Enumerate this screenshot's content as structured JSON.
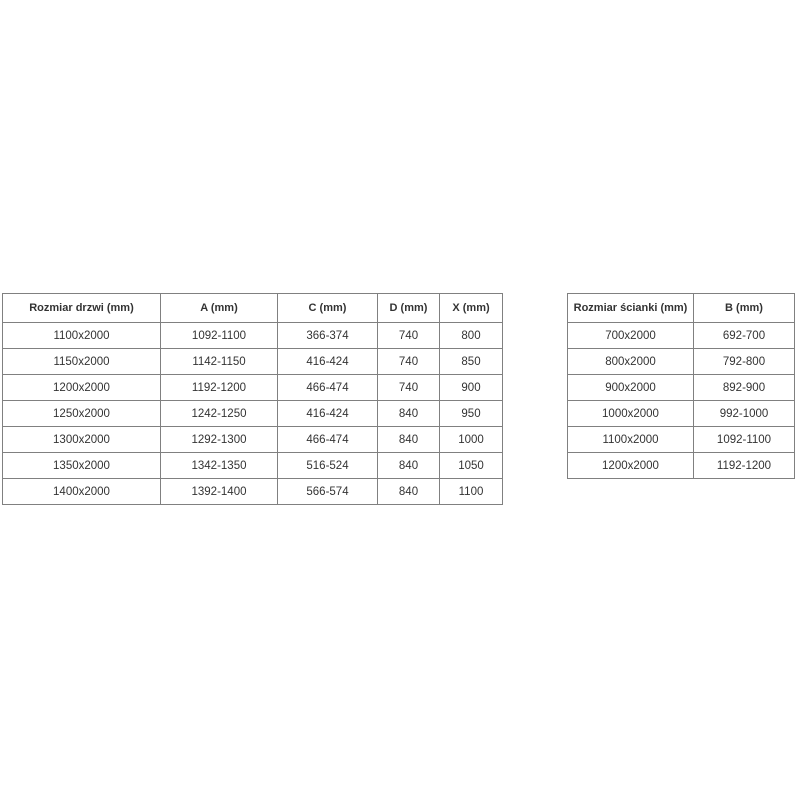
{
  "theme": {
    "background_color": "#ffffff",
    "border_color": "#808080",
    "text_color": "#333333"
  },
  "tables": {
    "doors": {
      "headers": [
        "Rozmiar drzwi (mm)",
        "A (mm)",
        "C (mm)",
        "D (mm)",
        "X (mm)"
      ],
      "rows": [
        [
          "1100x2000",
          "1092-1100",
          "366-374",
          "740",
          "800"
        ],
        [
          "1150x2000",
          "1142-1150",
          "416-424",
          "740",
          "850"
        ],
        [
          "1200x2000",
          "1192-1200",
          "466-474",
          "740",
          "900"
        ],
        [
          "1250x2000",
          "1242-1250",
          "416-424",
          "840",
          "950"
        ],
        [
          "1300x2000",
          "1292-1300",
          "466-474",
          "840",
          "1000"
        ],
        [
          "1350x2000",
          "1342-1350",
          "516-524",
          "840",
          "1050"
        ],
        [
          "1400x2000",
          "1392-1400",
          "566-574",
          "840",
          "1100"
        ]
      ]
    },
    "walls": {
      "headers": [
        "Rozmiar ścianki (mm)",
        "B (mm)"
      ],
      "rows": [
        [
          "700x2000",
          "692-700"
        ],
        [
          "800x2000",
          "792-800"
        ],
        [
          "900x2000",
          "892-900"
        ],
        [
          "1000x2000",
          "992-1000"
        ],
        [
          "1100x2000",
          "1092-1100"
        ],
        [
          "1200x2000",
          "1192-1200"
        ]
      ]
    }
  }
}
